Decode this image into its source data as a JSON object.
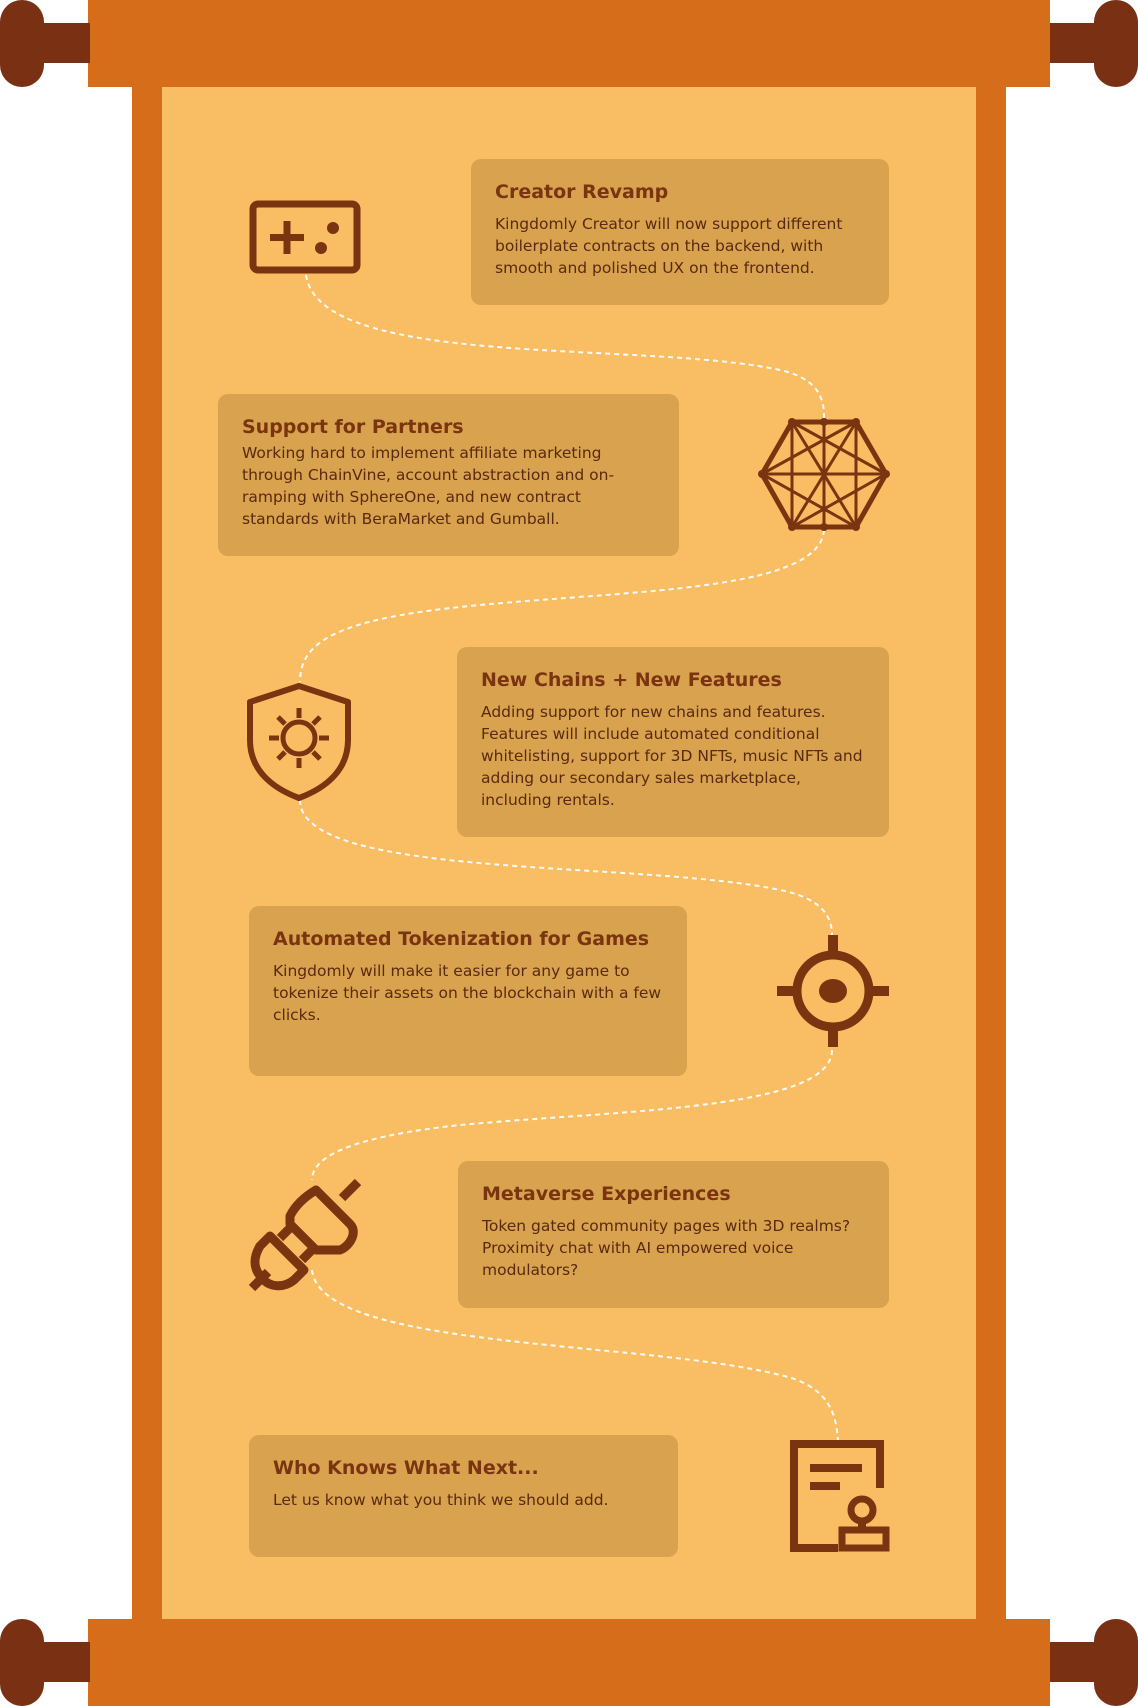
{
  "colors": {
    "rod": "#d66d1a",
    "knob": "#7a3012",
    "paper": "#f9bd63",
    "card": "#d8a24e",
    "icon": "#7a3410",
    "title": "#7a3410",
    "text": "#5a2a10",
    "path": "#ffffff"
  },
  "milestones": [
    {
      "title": "Creator Revamp",
      "text": "Kingdomly Creator will now support different boilerplate contracts on the backend, with smooth and polished UX on the frontend.",
      "icon": "gamepad-icon"
    },
    {
      "title": "Support for Partners",
      "text": "Working hard to implement affiliate marketing through ChainVine, account abstraction and on-ramping with SphereOne, and new contract standards with BeraMarket and Gumball.",
      "icon": "network-hexagon-icon"
    },
    {
      "title": "New Chains + New Features",
      "text": "Adding support for new chains and features. Features will include automated conditional whitelisting, support for 3D NFTs, music NFTs and adding our secondary sales marketplace, including rentals.",
      "icon": "shield-gear-icon"
    },
    {
      "title": "Automated Tokenization for Games",
      "text": "Kingdomly will make it easier for any game to tokenize their assets on the blockchain with a few clicks.",
      "icon": "crosshair-icon"
    },
    {
      "title": "Metaverse Experiences",
      "text": "Token gated community pages with 3D realms? Proximity chat with AI empowered voice modulators?",
      "icon": "plug-icon"
    },
    {
      "title": "Who Knows What Next...",
      "text": "Let us know what you think we should add.",
      "icon": "document-stamp-icon"
    }
  ]
}
